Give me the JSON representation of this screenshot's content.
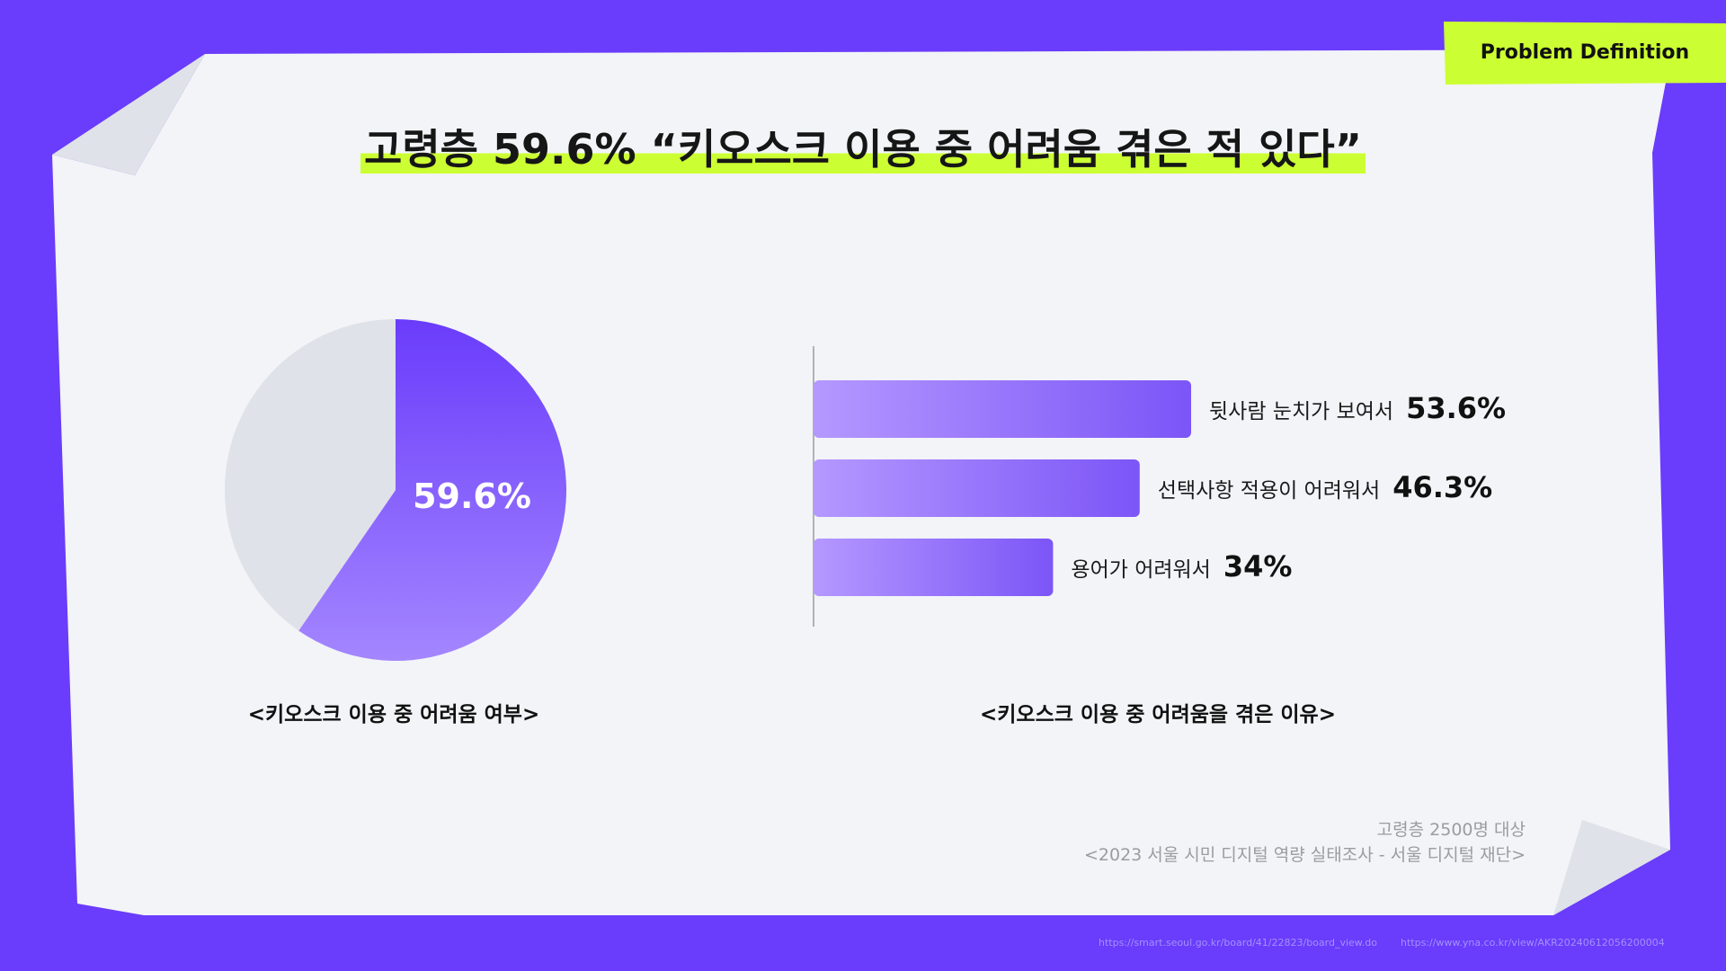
{
  "header": {
    "tag_label": "Problem Definition",
    "title": "고령층 59.6% “키오스크 이용 중 어려움 겪은 적 있다”"
  },
  "colors": {
    "background": "#6a3cfb",
    "paper": "#f2f4f7",
    "highlight": "#ccff33",
    "pie_accent": "#6a3cfb",
    "pie_rest": "#dfe2e8",
    "bar_start": "#b598ff",
    "bar_end": "#7c55f7"
  },
  "chart_data": [
    {
      "type": "pie",
      "title": "<키오스크 이용 중 어려움 여부>",
      "slices": [
        {
          "label": "",
          "value": 59.6
        },
        {
          "label": "",
          "value": 40.4
        }
      ],
      "data_label": "59.6%"
    },
    {
      "type": "bar",
      "orientation": "horizontal",
      "title": "<키오스크 이용 중 어려움을 겪은 이유>",
      "categories": [
        "뒷사람 눈치가 보여서",
        "선택사항 적용이 어려워서",
        "용어가 어려워서"
      ],
      "values": [
        53.6,
        46.3,
        34
      ],
      "value_labels": [
        "53.6%",
        "46.3%",
        "34%"
      ],
      "xlim": [
        0,
        100
      ],
      "grid": false
    }
  ],
  "notes": {
    "sample": "고령층 2500명 대상",
    "source": "<2023 서울 시민 디지털 역량 실태조사 - 서울 디지털 재단>"
  },
  "footer": {
    "link1": "https://smart.seoul.go.kr/board/41/22823/board_view.do",
    "link2": "https://www.yna.co.kr/view/AKR20240612056200004"
  }
}
